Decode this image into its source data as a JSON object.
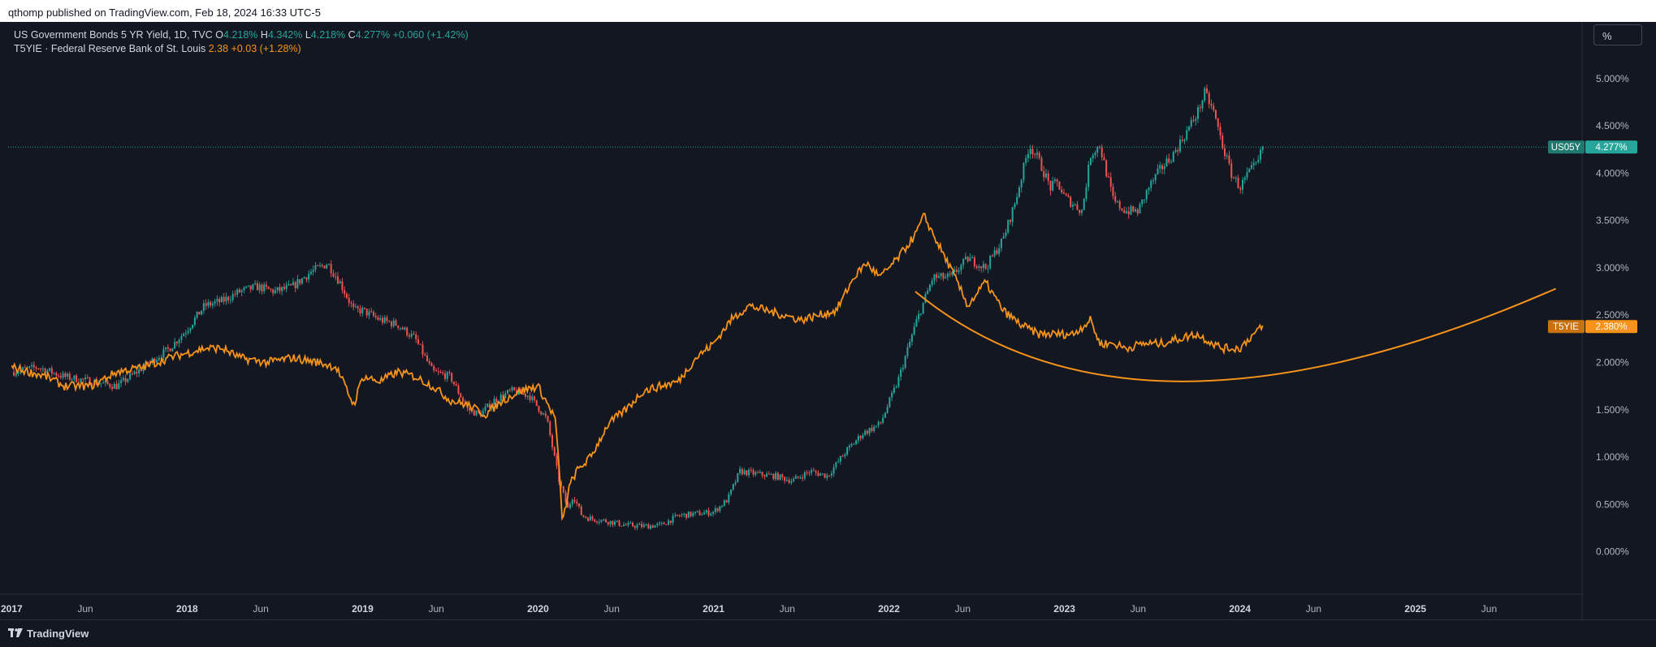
{
  "header": {
    "publish_line": "qthomp published on TradingView.com, Feb 18, 2024 16:33 UTC-5"
  },
  "legend": {
    "line1": {
      "name": "US Government Bonds 5 YR Yield, 1D, TVC",
      "o_label": "O",
      "o_value": "4.218%",
      "h_label": "H",
      "h_value": "4.342%",
      "l_label": "L",
      "l_value": "4.218%",
      "c_label": "C",
      "c_value": "4.277%",
      "change": "+0.060 (+1.42%)"
    },
    "line2": {
      "name": "T5YIE · Federal Reserve Bank of St. Louis",
      "value": "2.38",
      "change": "+0.03 (+1.28%)"
    }
  },
  "toolbar": {
    "scale_button": "%"
  },
  "footer": {
    "brand": "TradingView"
  },
  "colors": {
    "background": "#131722",
    "up": "#26a69a",
    "down": "#ef5350",
    "t5yie": "#f7931a",
    "grid": "#1e222d",
    "axis_text": "#b2b5be"
  },
  "chart_data": {
    "type": "line",
    "title": "",
    "xlabel": "",
    "ylabel": "",
    "grid": false,
    "x_range": [
      2016.98,
      2025.95
    ],
    "ylim": [
      -0.45,
      5.6
    ],
    "y_ticks": [
      "0.000%",
      "0.500%",
      "1.000%",
      "1.500%",
      "2.000%",
      "2.500%",
      "3.000%",
      "3.500%",
      "4.000%",
      "4.500%",
      "5.000%"
    ],
    "y_tick_values": [
      0,
      0.5,
      1.0,
      1.5,
      2.0,
      2.5,
      3.0,
      3.5,
      4.0,
      4.5,
      5.0
    ],
    "x_ticks": [
      {
        "label": "2017",
        "t": 2017.0,
        "bold": true
      },
      {
        "label": "Jun",
        "t": 2017.42,
        "bold": false
      },
      {
        "label": "2018",
        "t": 2018.0,
        "bold": true
      },
      {
        "label": "Jun",
        "t": 2018.42,
        "bold": false
      },
      {
        "label": "2019",
        "t": 2019.0,
        "bold": true
      },
      {
        "label": "Jun",
        "t": 2019.42,
        "bold": false
      },
      {
        "label": "2020",
        "t": 2020.0,
        "bold": true
      },
      {
        "label": "Jun",
        "t": 2020.42,
        "bold": false
      },
      {
        "label": "2021",
        "t": 2021.0,
        "bold": true
      },
      {
        "label": "Jun",
        "t": 2021.42,
        "bold": false
      },
      {
        "label": "2022",
        "t": 2022.0,
        "bold": true
      },
      {
        "label": "Jun",
        "t": 2022.42,
        "bold": false
      },
      {
        "label": "2023",
        "t": 2023.0,
        "bold": true
      },
      {
        "label": "Jun",
        "t": 2023.42,
        "bold": false
      },
      {
        "label": "2024",
        "t": 2024.0,
        "bold": true
      },
      {
        "label": "Jun",
        "t": 2024.42,
        "bold": false
      },
      {
        "label": "2025",
        "t": 2025.0,
        "bold": true
      },
      {
        "label": "Jun",
        "t": 2025.42,
        "bold": false
      }
    ],
    "series": [
      {
        "name": "US05Y",
        "style": "candles",
        "last_label": "US05Y",
        "last_value": "4.277%",
        "last": 4.277,
        "x": [
          2017.0,
          2017.15,
          2017.3,
          2017.45,
          2017.6,
          2017.75,
          2017.9,
          2018.0,
          2018.1,
          2018.2,
          2018.3,
          2018.4,
          2018.5,
          2018.6,
          2018.7,
          2018.8,
          2018.87,
          2018.95,
          2019.0,
          2019.1,
          2019.2,
          2019.3,
          2019.4,
          2019.5,
          2019.6,
          2019.67,
          2019.75,
          2019.85,
          2019.95,
          2020.05,
          2020.12,
          2020.17,
          2020.2,
          2020.25,
          2020.3,
          2020.4,
          2020.5,
          2020.6,
          2020.7,
          2020.8,
          2020.9,
          2021.0,
          2021.08,
          2021.15,
          2021.25,
          2021.35,
          2021.45,
          2021.55,
          2021.65,
          2021.75,
          2021.85,
          2021.95,
          2022.05,
          2022.15,
          2022.25,
          2022.35,
          2022.45,
          2022.55,
          2022.65,
          2022.72,
          2022.8,
          2022.85,
          2022.92,
          2022.96,
          2023.0,
          2023.1,
          2023.15,
          2023.2,
          2023.28,
          2023.35,
          2023.42,
          2023.48,
          2023.55,
          2023.62,
          2023.7,
          2023.76,
          2023.8,
          2023.85,
          2023.9,
          2023.95,
          2024.0,
          2024.05,
          2024.1,
          2024.13
        ],
        "values": [
          1.9,
          1.95,
          1.85,
          1.8,
          1.75,
          1.95,
          2.15,
          2.35,
          2.6,
          2.65,
          2.75,
          2.8,
          2.75,
          2.8,
          2.95,
          3.05,
          2.85,
          2.55,
          2.55,
          2.45,
          2.4,
          2.25,
          1.9,
          1.85,
          1.5,
          1.45,
          1.6,
          1.7,
          1.65,
          1.4,
          0.75,
          0.45,
          0.6,
          0.38,
          0.35,
          0.32,
          0.28,
          0.27,
          0.28,
          0.38,
          0.4,
          0.42,
          0.55,
          0.85,
          0.82,
          0.8,
          0.75,
          0.85,
          0.8,
          1.05,
          1.25,
          1.35,
          1.8,
          2.4,
          2.9,
          2.9,
          3.1,
          3.0,
          3.3,
          3.7,
          4.3,
          4.15,
          3.85,
          3.9,
          3.75,
          3.6,
          4.2,
          4.3,
          3.7,
          3.6,
          3.6,
          3.85,
          4.05,
          4.2,
          4.45,
          4.65,
          4.85,
          4.65,
          4.3,
          4.0,
          3.85,
          4.0,
          4.1,
          4.277
        ]
      },
      {
        "name": "T5YIE",
        "style": "line",
        "last_label": "T5YIE",
        "last_value": "2.380%",
        "last": 2.38,
        "x": [
          2017.0,
          2017.1,
          2017.2,
          2017.3,
          2017.45,
          2017.6,
          2017.75,
          2017.9,
          2018.0,
          2018.1,
          2018.2,
          2018.3,
          2018.45,
          2018.6,
          2018.75,
          2018.85,
          2018.95,
          2019.0,
          2019.1,
          2019.2,
          2019.3,
          2019.4,
          2019.5,
          2019.6,
          2019.7,
          2019.8,
          2019.9,
          2020.0,
          2020.1,
          2020.14,
          2020.18,
          2020.22,
          2020.3,
          2020.4,
          2020.5,
          2020.6,
          2020.7,
          2020.8,
          2020.9,
          2021.0,
          2021.1,
          2021.2,
          2021.3,
          2021.4,
          2021.5,
          2021.6,
          2021.7,
          2021.8,
          2021.87,
          2021.95,
          2022.05,
          2022.15,
          2022.2,
          2022.28,
          2022.35,
          2022.45,
          2022.55,
          2022.65,
          2022.75,
          2022.85,
          2022.95,
          2023.05,
          2023.15,
          2023.2,
          2023.28,
          2023.35,
          2023.45,
          2023.55,
          2023.65,
          2023.75,
          2023.8,
          2023.9,
          2024.0,
          2024.05,
          2024.13
        ],
        "values": [
          1.95,
          1.9,
          1.85,
          1.75,
          1.75,
          1.9,
          1.95,
          2.05,
          2.1,
          2.15,
          2.15,
          2.05,
          2.0,
          2.05,
          2.0,
          1.95,
          1.55,
          1.85,
          1.8,
          1.9,
          1.85,
          1.75,
          1.6,
          1.55,
          1.45,
          1.6,
          1.7,
          1.75,
          1.4,
          0.3,
          0.7,
          0.85,
          1.0,
          1.35,
          1.5,
          1.7,
          1.75,
          1.8,
          2.05,
          2.2,
          2.45,
          2.6,
          2.55,
          2.5,
          2.45,
          2.5,
          2.55,
          2.9,
          3.05,
          2.9,
          3.1,
          3.35,
          3.55,
          3.25,
          3.0,
          2.6,
          2.85,
          2.55,
          2.4,
          2.3,
          2.3,
          2.3,
          2.45,
          2.2,
          2.2,
          2.15,
          2.2,
          2.2,
          2.25,
          2.3,
          2.25,
          2.15,
          2.15,
          2.25,
          2.38
        ]
      }
    ],
    "annotations": [
      {
        "type": "curve",
        "name": "orange-arc",
        "points": [
          [
            2022.15,
            2.75
          ],
          [
            2023.4,
            1.8
          ],
          [
            2025.8,
            2.78
          ]
        ]
      }
    ]
  }
}
